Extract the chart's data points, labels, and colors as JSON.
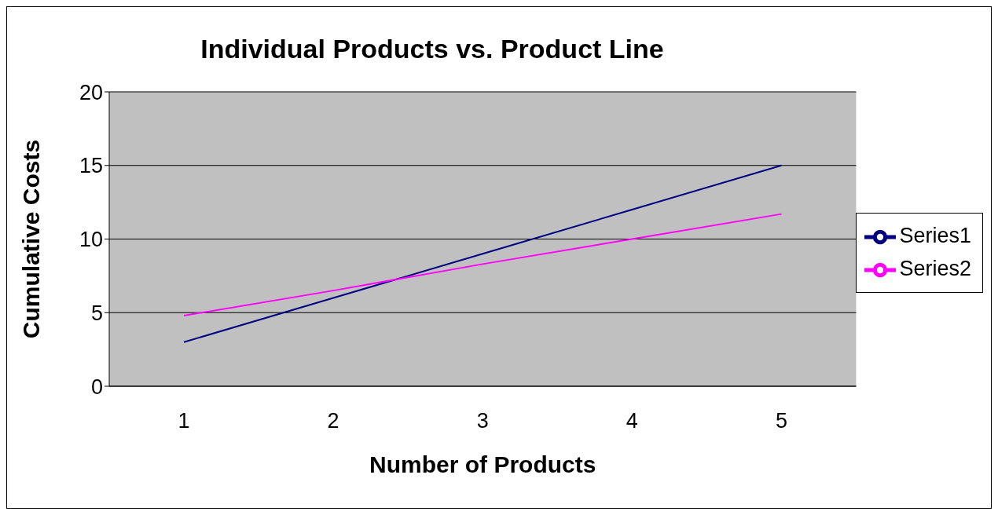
{
  "chart_data": {
    "type": "line",
    "title": "Individual Products vs. Product Line",
    "xlabel": "Number of Products",
    "ylabel": "Cumulative Costs",
    "categories": [
      "1",
      "2",
      "3",
      "4",
      "5"
    ],
    "series": [
      {
        "name": "Series1",
        "color": "#000080",
        "values": [
          3,
          6,
          9,
          12,
          15
        ]
      },
      {
        "name": "Series2",
        "color": "#ff00ff",
        "values": [
          4.8,
          6.5,
          8.3,
          10,
          11.7
        ]
      }
    ],
    "ylim": [
      0,
      20
    ],
    "yticks": [
      0,
      5,
      10,
      15,
      20
    ],
    "grid": "y",
    "legend": "right",
    "marker": "none",
    "line_style": "solid"
  }
}
